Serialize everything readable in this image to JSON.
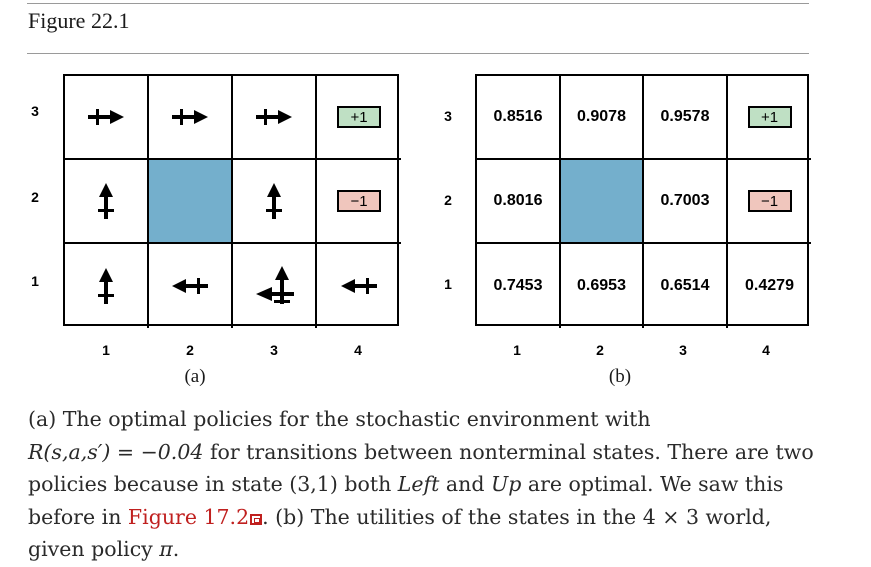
{
  "figure_title": "Figure 22.1",
  "panel_a": {
    "label": "(a)",
    "x_ticks": [
      "1",
      "2",
      "3",
      "4"
    ],
    "y_ticks": [
      "3",
      "2",
      "1"
    ],
    "terminal_pos": "+1",
    "terminal_neg": "−1",
    "policy": {
      "r3": [
        "right",
        "right",
        "right",
        "terminal+"
      ],
      "r2": [
        "up",
        "obstacle",
        "up",
        "terminal-"
      ],
      "r1": [
        "up",
        "left",
        "left+up",
        "left"
      ]
    }
  },
  "panel_b": {
    "label": "(b)",
    "x_ticks": [
      "1",
      "2",
      "3",
      "4"
    ],
    "y_ticks": [
      "3",
      "2",
      "1"
    ],
    "terminal_pos": "+1",
    "terminal_neg": "−1",
    "utilities": {
      "r3": [
        "0.8516",
        "0.9078",
        "0.9578"
      ],
      "r2c1": "0.8016",
      "r2c3": "0.7003",
      "r1": [
        "0.7453",
        "0.6953",
        "0.6514",
        "0.4279"
      ]
    }
  },
  "caption": {
    "part1": "(a) The optimal policies for the stochastic environment with",
    "formula": "R(s,a,s′) = −0.04",
    "part2": " for transitions between nonterminal states. There are two policies because in state (3,1) both ",
    "left_word": "Left",
    "and_word": " and ",
    "up_word": "Up",
    "part3": " are optimal. We saw this before in ",
    "link": "Figure 17.2",
    "part4": ". (b) The utilities of the states in the ",
    "dims": "4 × 3",
    "part5": " world, given policy ",
    "pi": "π",
    "end": "."
  },
  "colors": {
    "obstacle": "#74afcc",
    "terminal_pos": "#bfe0c4",
    "terminal_neg": "#f0c6bd",
    "link": "#c0201f"
  }
}
